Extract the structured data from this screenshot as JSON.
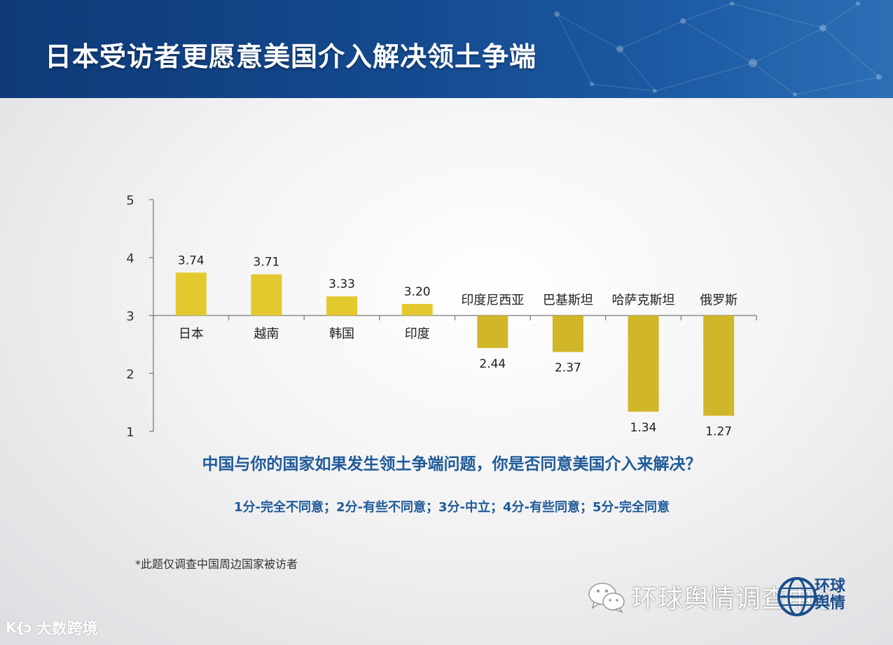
{
  "header": {
    "title": "日本受访者更愿意美国介入解决领土争端"
  },
  "chart_data": {
    "type": "bar",
    "baseline": 3,
    "ylim": [
      1,
      5
    ],
    "yticks": [
      "1",
      "2",
      "3",
      "4",
      "5"
    ],
    "categories": [
      "日本",
      "越南",
      "韩国",
      "印度",
      "印度尼西亚",
      "巴基斯坦",
      "哈萨克斯坦",
      "俄罗斯"
    ],
    "values": [
      3.74,
      3.71,
      3.33,
      3.2,
      2.44,
      2.37,
      1.34,
      1.27
    ],
    "value_labels": [
      "3.74",
      "3.71",
      "3.33",
      "3.20",
      "2.44",
      "2.37",
      "1.34",
      "1.27"
    ],
    "bar_color": "#e3c92e",
    "bar_color_low": "#d2b62a",
    "axis_color": "#8c8c8c"
  },
  "question": "中国与你的国家如果发生领土争端问题，你是否同意美国介入来解决？",
  "scale_note": "1分-完全不同意；2分-有些不同意；3分-中立；4分-有些同意；5分-完全同意",
  "footnote": "*此题仅调查中国周边国家被访者",
  "watermarks": {
    "left_logo": "K{ɔ",
    "left_text": "大数跨境",
    "right_text": "环球舆情调查中心",
    "brand_text": "环球舆情"
  }
}
